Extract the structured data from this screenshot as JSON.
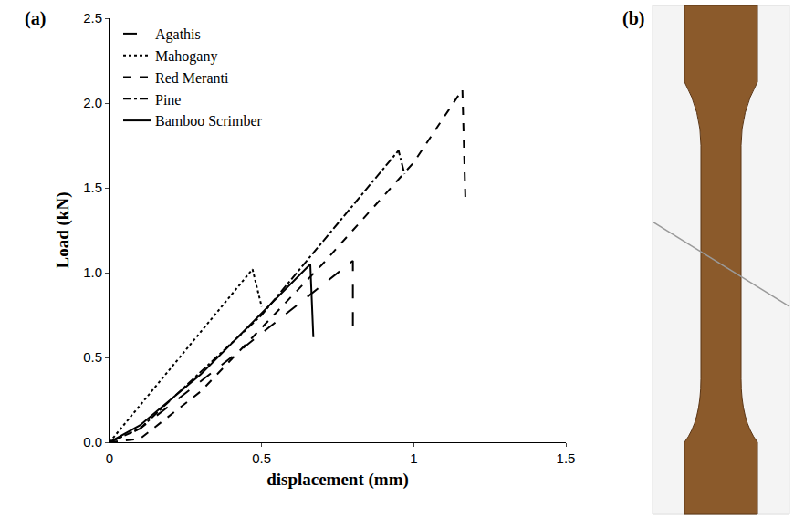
{
  "chart_data": {
    "type": "line",
    "x_label": "displacement (mm)",
    "y_label": "Load (kN)",
    "annotations": [
      {
        "text": "(a)"
      },
      {
        "text": "(b)"
      }
    ],
    "xlim": [
      0,
      1.5
    ],
    "xticks": [
      0,
      0.5,
      1,
      1.5
    ],
    "ylim": [
      0,
      2.5
    ],
    "yticks": [
      {
        "value": 0,
        "label": "0.0"
      },
      0.5,
      {
        "value": 1,
        "label": "1.0"
      },
      1.5,
      {
        "value": 2,
        "label": "2.0"
      },
      2.5
    ],
    "grid": false,
    "legend": "top-left",
    "series": [
      {
        "name": "Agathis",
        "color": "#000000",
        "line_style": "longdash",
        "x": [
          0,
          0.1,
          0.4,
          0.8,
          0.8
        ],
        "values": [
          0,
          0.08,
          0.5,
          1.07,
          0.67
        ]
      },
      {
        "name": "Mahogany",
        "color": "#000000",
        "line_style": "dot",
        "x": [
          0,
          0.47,
          0.5
        ],
        "values": [
          0,
          1.02,
          0.8
        ]
      },
      {
        "name": "Red Meranti",
        "color": "#000000",
        "line_style": "dash",
        "x": [
          0,
          0.1,
          0.3,
          0.7,
          1.0,
          1.16,
          1.17
        ],
        "values": [
          0,
          0.02,
          0.3,
          1.05,
          1.65,
          2.08,
          1.42
        ]
      },
      {
        "name": "Pine",
        "color": "#000000",
        "line_style": "dashdot",
        "x": [
          0,
          0.1,
          0.5,
          0.95,
          0.97
        ],
        "values": [
          0,
          0.08,
          0.75,
          1.72,
          1.58
        ]
      },
      {
        "name": "Bamboo Scrimber",
        "color": "#000000",
        "line_style": "solid",
        "x": [
          0,
          0.1,
          0.3,
          0.66,
          0.67
        ],
        "values": [
          0,
          0.1,
          0.4,
          1.05,
          0.62
        ]
      }
    ]
  }
}
